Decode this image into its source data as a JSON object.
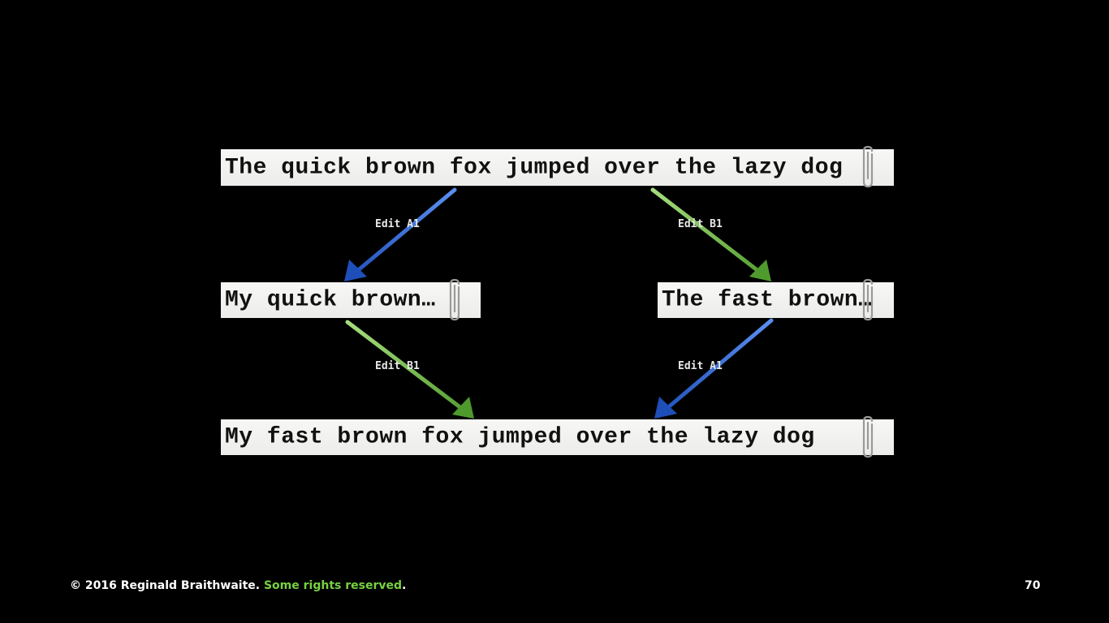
{
  "strips": {
    "original": "The quick brown fox jumped over the lazy dog",
    "branch_a": "My quick brown…",
    "branch_b": "The fast brown…",
    "merged": "My fast brown fox jumped over the lazy dog"
  },
  "edits": {
    "top_left": "Edit A1",
    "top_right": "Edit B1",
    "bottom_left": "Edit B1",
    "bottom_right": "Edit A1"
  },
  "colors": {
    "edit_a": "#2a5ec8",
    "edit_b": "#5fa83a",
    "rights_green": "#77d242"
  },
  "footer": {
    "copyright": "© 2016 Reginald Braithwaite.",
    "rights": "Some rights reserved",
    "period": ".",
    "page_number": "70"
  }
}
